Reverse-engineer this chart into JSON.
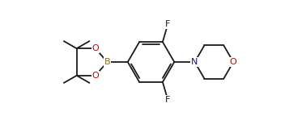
{
  "background_color": "#ffffff",
  "line_color": "#1a1a1a",
  "atom_colors": {
    "B": "#8b6914",
    "O": "#cc0000",
    "N": "#1a1a6e",
    "F": "#1a1a1a"
  },
  "figsize": [
    3.52,
    1.54
  ],
  "dpi": 100,
  "lw": 1.3
}
